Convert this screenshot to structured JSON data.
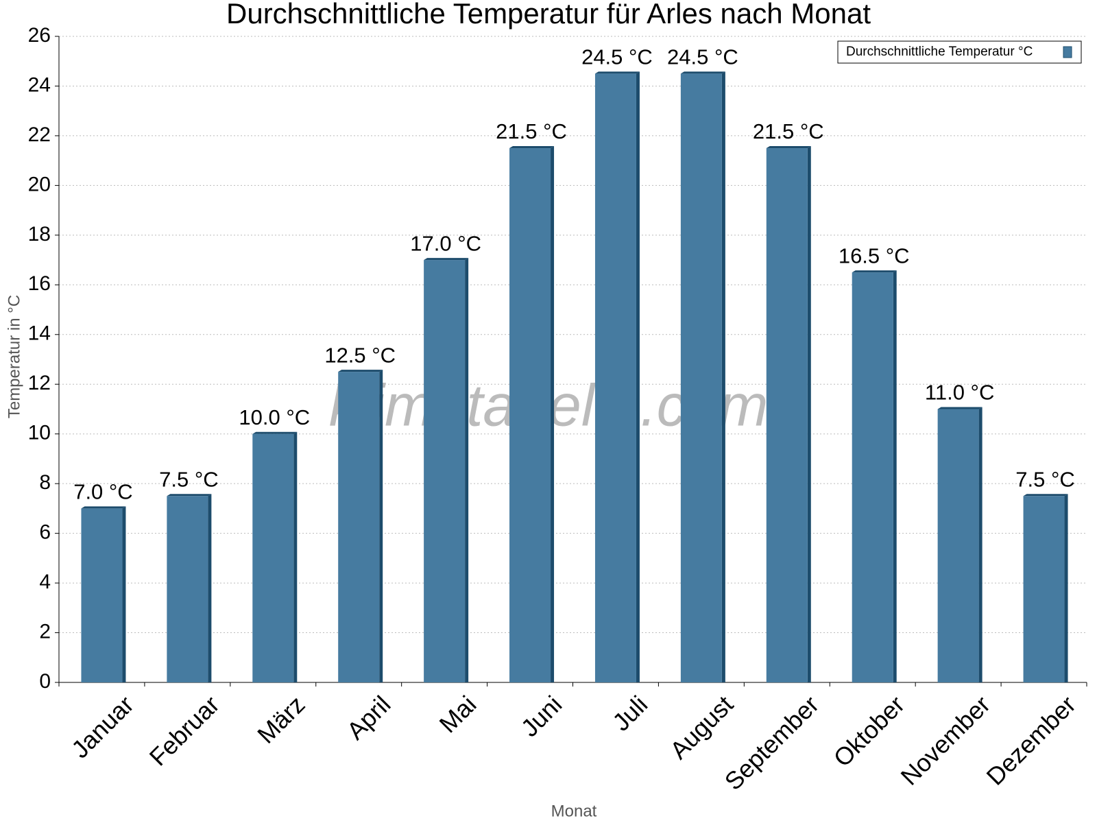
{
  "chart_data": {
    "type": "bar",
    "title": "Durchschnittliche Temperatur für Arles nach Monat",
    "watermark": "klimatabelle.com",
    "x_label": "Monat",
    "y_label": "Temperatur in °C",
    "categories": [
      "Januar",
      "Februar",
      "März",
      "April",
      "Mai",
      "Juni",
      "Juli",
      "August",
      "September",
      "Oktober",
      "November",
      "Dezember"
    ],
    "series": [
      {
        "name": "Durchschnittliche Temperatur °C",
        "color": "#467ba0",
        "values": [
          7.0,
          7.5,
          10.0,
          12.5,
          17.0,
          21.5,
          24.5,
          24.5,
          21.5,
          16.5,
          11.0,
          7.5
        ],
        "value_labels": [
          "7.0 °C",
          "7.5 °C",
          "10.0 °C",
          "12.5 °C",
          "17.0 °C",
          "21.5 °C",
          "24.5 °C",
          "24.5 °C",
          "21.5 °C",
          "16.5 °C",
          "11.0 °C",
          "7.5 °C"
        ]
      }
    ],
    "ylim": [
      0,
      26
    ],
    "yticks": [
      0,
      2,
      4,
      6,
      8,
      10,
      12,
      14,
      16,
      18,
      20,
      22,
      24,
      26
    ],
    "grid": true,
    "legend": "top-right"
  }
}
